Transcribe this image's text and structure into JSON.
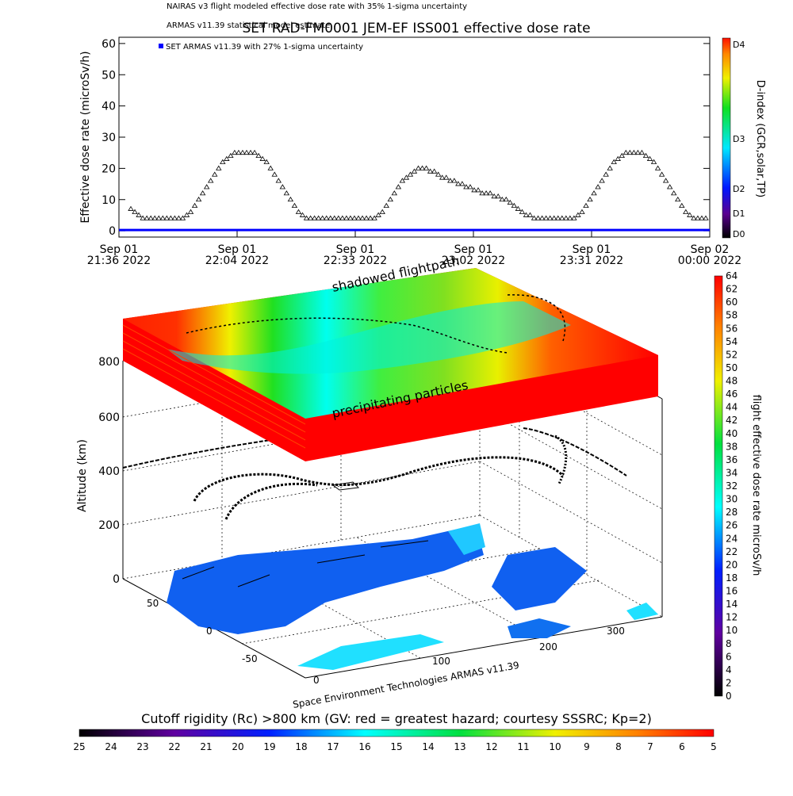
{
  "chart_data": [
    {
      "type": "scatter",
      "title": "SET RAD-FM0001 JEM-EF ISS001 effective dose rate",
      "legend": [
        "NAIRAS v3 flight modeled effective dose rate with 35% 1-sigma uncertainty",
        "ARMAS v11.39 statistical model estimate",
        "SET ARMAS v11.39 with 27% 1-sigma uncertainty"
      ],
      "ylabel": "Effective dose rate (microSv/h)",
      "ylim": [
        -2,
        62
      ],
      "yticks": [
        "0",
        "10",
        "20",
        "30",
        "40",
        "50",
        "60"
      ],
      "xtick_labels": [
        [
          "Sep 01",
          "21:36 2022"
        ],
        [
          "Sep 01",
          "22:04 2022"
        ],
        [
          "Sep 01",
          "22:33 2022"
        ],
        [
          "Sep 01",
          "23:02 2022"
        ],
        [
          "Sep 01",
          "23:31 2022"
        ],
        [
          "Sep 02",
          "00:00 2022"
        ]
      ],
      "series": [
        {
          "name": "SET ARMAS v11.39 with 27% 1-sigma uncertainty",
          "color": "#0000ff",
          "values_constant": 0
        }
      ],
      "values": [
        7,
        6,
        5,
        4,
        4,
        4,
        4,
        4,
        4,
        4,
        4,
        4,
        4,
        4,
        5,
        6,
        8,
        10,
        12,
        14,
        16,
        18,
        20,
        22,
        23,
        24,
        25,
        25,
        25,
        25,
        25,
        25,
        24,
        23,
        22,
        20,
        18,
        16,
        14,
        12,
        10,
        8,
        6,
        5,
        4,
        4,
        4,
        4,
        4,
        4,
        4,
        4,
        4,
        4,
        4,
        4,
        4,
        4,
        4,
        4,
        4,
        4,
        5,
        6,
        8,
        10,
        12,
        14,
        16,
        17,
        18,
        19,
        20,
        20,
        20,
        19,
        19,
        18,
        17,
        17,
        16,
        16,
        15,
        15,
        14,
        14,
        13,
        13,
        12,
        12,
        12,
        11,
        11,
        10,
        10,
        9,
        8,
        7,
        6,
        5,
        5,
        4,
        4,
        4,
        4,
        4,
        4,
        4,
        4,
        4,
        4,
        4,
        5,
        6,
        8,
        10,
        12,
        14,
        16,
        18,
        20,
        22,
        23,
        24,
        25,
        25,
        25,
        25,
        25,
        24,
        23,
        22,
        20,
        18,
        16,
        14,
        12,
        10,
        8,
        6,
        5,
        4,
        4,
        4,
        4
      ],
      "colorbar": {
        "title": "D-index (GCR,solar,TP)",
        "labels": [
          "D4",
          "D3",
          "D2",
          "D1",
          "D0"
        ]
      }
    },
    {
      "type": "other",
      "annotations": [
        "shadowed flightpath",
        "precipitating particles",
        "Space Environment Technologies ARMAS v11.39"
      ],
      "zlabel": "Altitude (km)",
      "zticks": [
        "0",
        "200",
        "400",
        "600",
        "800"
      ],
      "xticks": [
        "0",
        "100",
        "200",
        "300"
      ],
      "yticks": [
        "-50",
        "0",
        "50"
      ],
      "right_colorbar": {
        "title": "flight effective dose rate microSv/h",
        "labels": [
          "0",
          "2",
          "4",
          "6",
          "8",
          "10",
          "12",
          "14",
          "16",
          "18",
          "20",
          "22",
          "24",
          "26",
          "28",
          "30",
          "32",
          "34",
          "36",
          "38",
          "40",
          "42",
          "44",
          "46",
          "48",
          "50",
          "52",
          "54",
          "56",
          "58",
          "60",
          "62",
          "64"
        ]
      },
      "bottom_colorbar": {
        "title": "Cutoff rigidity (Rc) >800 km (GV: red = greatest hazard; courtesy SSSRC; Kp=2)",
        "labels": [
          "25",
          "24",
          "23",
          "22",
          "21",
          "20",
          "19",
          "18",
          "17",
          "16",
          "15",
          "14",
          "13",
          "12",
          "11",
          "10",
          "9",
          "8",
          "7",
          "6",
          "5"
        ]
      }
    }
  ]
}
